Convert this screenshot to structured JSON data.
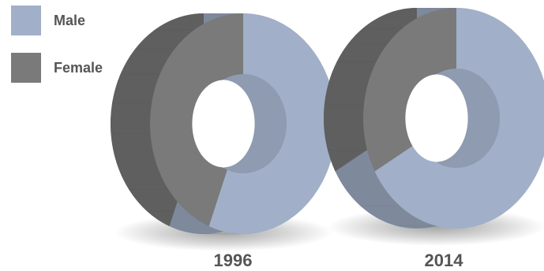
{
  "chart_data": {
    "type": "pie",
    "variant": "donut-3d",
    "legend": [
      {
        "name": "Male",
        "color": "#a1b0c8"
      },
      {
        "name": "Female",
        "color": "#7a7a7a"
      }
    ],
    "charts": [
      {
        "label": "1996",
        "slices": [
          {
            "name": "Male",
            "value": 56
          },
          {
            "name": "Female",
            "value": 44
          }
        ]
      },
      {
        "label": "2014",
        "slices": [
          {
            "name": "Male",
            "value": 67
          },
          {
            "name": "Female",
            "value": 33
          }
        ]
      }
    ],
    "legend_position": "top-left"
  }
}
